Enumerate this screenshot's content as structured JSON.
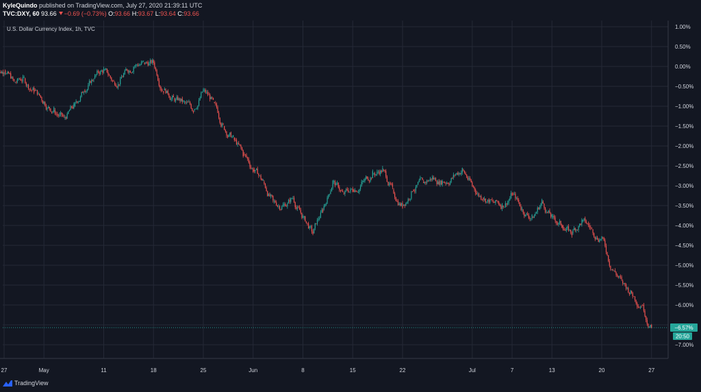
{
  "header": {
    "author": "KyleQuindo",
    "published_text": "published on TradingView.com, July 27, 2020 21:39:11 UTC",
    "symbol": "TVC:DXY, 60",
    "last_price": "93.66",
    "change": "−0.69 (−0.73%)",
    "open_label": "O:",
    "open_value": "93.66",
    "high_label": "H:",
    "high_value": "93.67",
    "low_label": "L:",
    "low_value": "93.64",
    "close_label": "C:",
    "close_value": "93.66"
  },
  "chart_title": "U.S. Dollar Currency Index, 1h, TVC",
  "price_tag": {
    "value": "−6.57%",
    "countdown": "20:50"
  },
  "footer": {
    "brand": "TradingView"
  },
  "colors": {
    "background": "#131722",
    "grid": "#242936",
    "up": "#26a69a",
    "down": "#ef5350",
    "text": "#d1d4dc",
    "tag": "#26a69a"
  },
  "chart_data": {
    "type": "candlestick",
    "title": "U.S. Dollar Currency Index, 1h, TVC",
    "y_axis_unit": "percent",
    "ylim": [
      -7.2,
      1.2
    ],
    "y_ticks": [
      1,
      0.5,
      0,
      -0.5,
      -1,
      -1.5,
      -2,
      -2.5,
      -3,
      -3.5,
      -4,
      -4.5,
      -5,
      -5.5,
      -6,
      -6.5,
      -7
    ],
    "y_tick_labels": [
      "1.00%",
      "0.50%",
      "0.00%",
      "−0.50%",
      "−1.00%",
      "−1.50%",
      "−2.00%",
      "−2.50%",
      "−3.00%",
      "−3.50%",
      "−4.00%",
      "−4.50%",
      "−5.00%",
      "−5.50%",
      "−6.00%",
      "",
      "−7.00%"
    ],
    "x_tick_labels": [
      "27",
      "May",
      "11",
      "18",
      "25",
      "Jun",
      "8",
      "15",
      "22",
      "Jul",
      "7",
      "13",
      "20",
      "27"
    ],
    "x_tick_index": [
      0,
      4,
      10,
      15,
      20,
      25,
      30,
      35,
      40,
      47,
      51,
      55,
      60,
      65
    ],
    "days": 66,
    "last_value": -6.57,
    "grid": true,
    "series": [
      {
        "values": [
          -0.1,
          -0.4,
          -0.3,
          -0.6,
          -0.9,
          -1.1,
          -1.3,
          -1.0,
          -0.6,
          -0.3,
          -0.1,
          -0.4,
          -0.2,
          0.0,
          0.1,
          0.1,
          -0.6,
          -0.8,
          -0.9,
          -1.1,
          -0.6,
          -0.9,
          -1.5,
          -1.8,
          -2.2,
          -2.6,
          -2.9,
          -3.4,
          -3.5,
          -3.3,
          -3.8,
          -4.2,
          -3.6,
          -2.9,
          -3.2,
          -3.1,
          -2.9,
          -2.7,
          -2.6,
          -3.1,
          -3.5,
          -3.1,
          -2.9,
          -2.8,
          -2.9,
          -2.8,
          -2.6,
          -3.0,
          -3.3,
          -3.4,
          -3.5,
          -3.2,
          -3.6,
          -3.8,
          -3.4,
          -3.8,
          -4.0,
          -4.2,
          -3.9,
          -4.1,
          -4.3,
          -5.1,
          -5.4,
          -5.7,
          -6.0,
          -6.6
        ]
      }
    ]
  }
}
